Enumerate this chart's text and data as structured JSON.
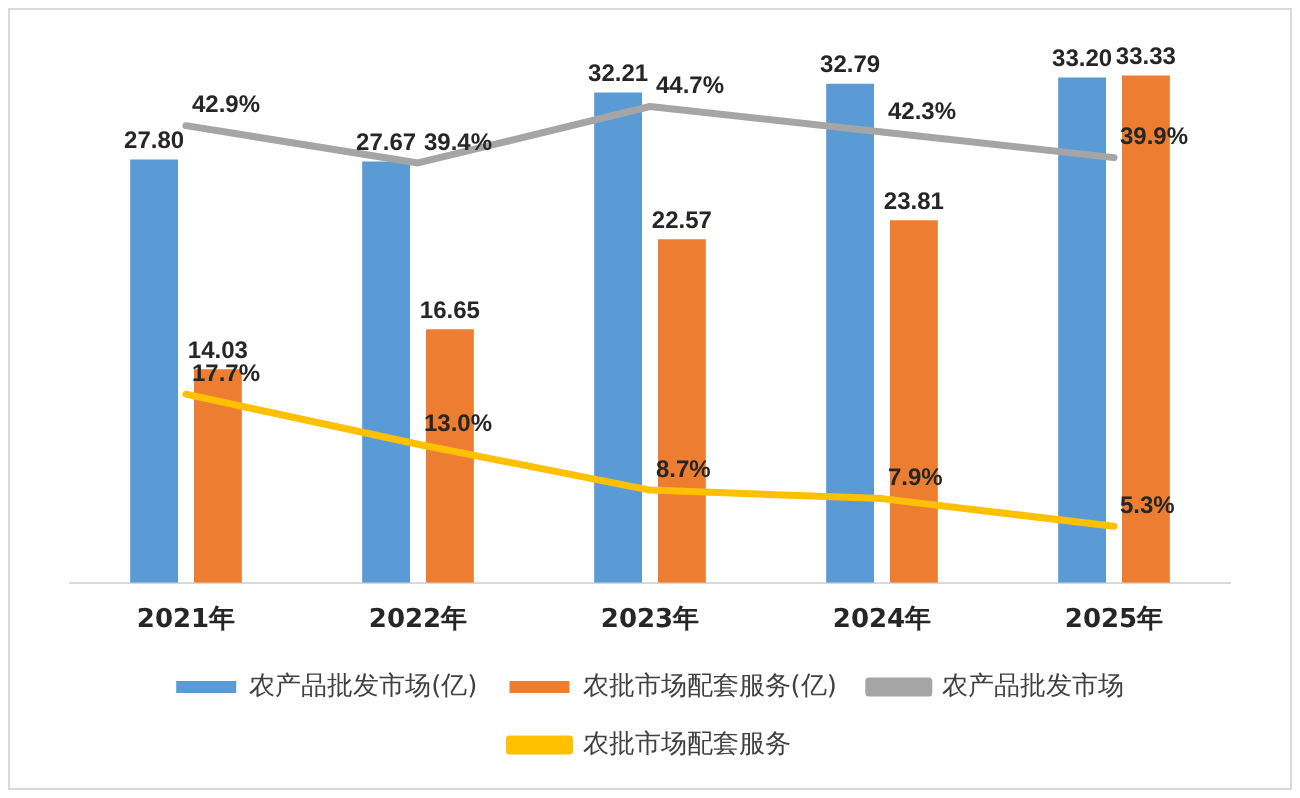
{
  "chart_data": {
    "type": "bar",
    "categories": [
      "2021年",
      "2022年",
      "2023年",
      "2024年",
      "2025年"
    ],
    "series": [
      {
        "name": "农产品批发市场(亿)",
        "color": "#5b9bd5",
        "values": [
          27.8,
          27.67,
          32.21,
          32.79,
          33.2
        ],
        "value_labels": [
          "27.80",
          "27.67",
          "32.21",
          "32.79",
          "33.20"
        ]
      },
      {
        "name": "农批市场配套服务(亿)",
        "color": "#ed7d31",
        "values": [
          14.03,
          16.65,
          22.57,
          23.81,
          33.33
        ],
        "value_labels": [
          "14.03",
          "16.65",
          "22.57",
          "23.81",
          "33.33"
        ]
      },
      {
        "name": "农产品批发市场",
        "type": "line",
        "axis": "y2",
        "color": "#a5a5a5",
        "values": [
          42.9,
          39.4,
          44.7,
          42.3,
          39.9
        ],
        "value_labels": [
          "42.9%",
          "39.4%",
          "44.7%",
          "42.3%",
          "39.9%"
        ]
      },
      {
        "name": "农批市场配套服务",
        "type": "line",
        "axis": "y2",
        "color": "#ffc000",
        "values": [
          17.7,
          13.0,
          8.7,
          7.9,
          5.3
        ],
        "value_labels": [
          "17.7%",
          "13.0%",
          "8.7%",
          "7.9%",
          "5.3%"
        ]
      }
    ],
    "tick_labels": "x",
    "grid": false,
    "legend": "bottom",
    "marker": "none",
    "line_style": "solid"
  }
}
